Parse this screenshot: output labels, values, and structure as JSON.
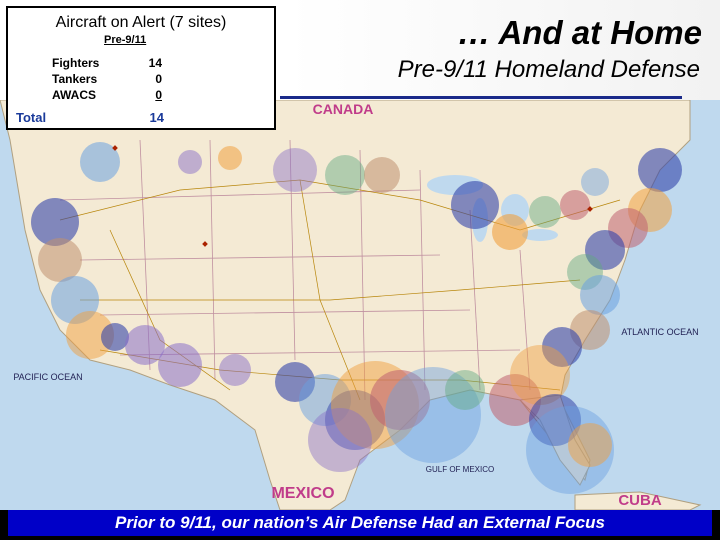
{
  "header": {
    "title": "… And at Home",
    "subtitle": "Pre-9/11 Homeland Defense"
  },
  "alert_box": {
    "title": "Aircraft on Alert (7 sites)",
    "column_header": "Pre-9/11",
    "rows": [
      {
        "label": "Fighters",
        "value": "14"
      },
      {
        "label": "Tankers",
        "value": "0"
      },
      {
        "label": "AWACS",
        "value": "0"
      }
    ],
    "total_label": "Total",
    "total_value": "14"
  },
  "map": {
    "labels": {
      "canada": "CANADA",
      "mexico": "MEXICO",
      "cuba": "CUBA",
      "pacific": "PACIFIC OCEAN",
      "atlantic": "ATLANTIC OCEAN",
      "gulf": "GULF OF MEXICO"
    },
    "colors": {
      "land": "#f4ead4",
      "water": "#bfd9ee",
      "blue": "#3344aa",
      "orange": "#f0a040",
      "violet": "#8a70c8",
      "rose": "#c06070",
      "green": "#60a880",
      "lightblue": "#6aa0e0",
      "tan": "#c09070",
      "route": "#b8860b"
    }
  },
  "banner": {
    "text": "Prior to 9/11, our nation’s Air Defense Had an External Focus",
    "color": "#0000c8"
  }
}
